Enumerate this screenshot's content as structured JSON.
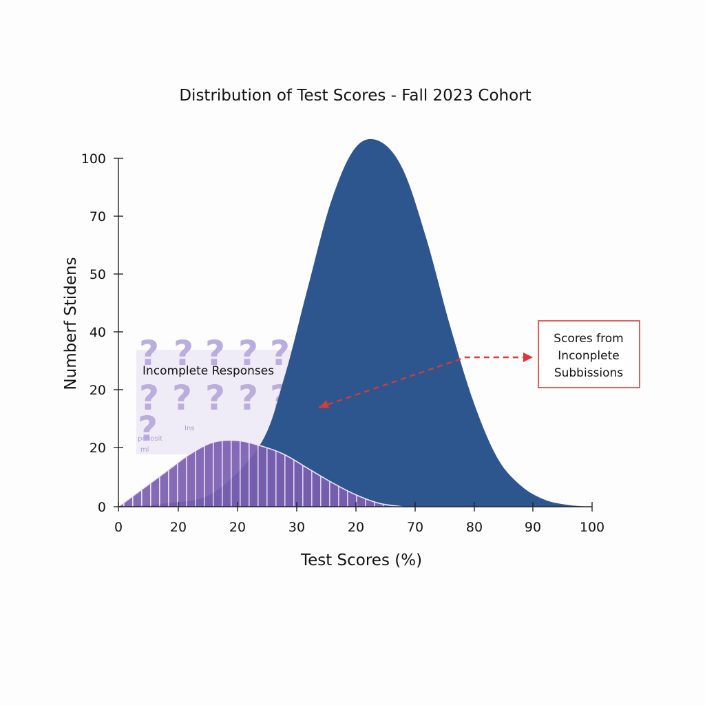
{
  "chart_data": {
    "type": "area",
    "title": "Distribution of Test Scores - Fall 2023 Cohort",
    "xlabel": "Test Scores (%)",
    "ylabel": "Numberf Stidens",
    "x_ticks": [
      "0",
      "20",
      "20",
      "30",
      "20",
      "70",
      "80",
      "90",
      "100"
    ],
    "y_ticks": [
      "0",
      "20",
      "20",
      "40",
      "50",
      "70",
      "100"
    ],
    "grid": false,
    "series": [
      {
        "fill": "#2d558e",
        "x": [
          0,
          10,
          20,
          30,
          35,
          40,
          45,
          50,
          55,
          60,
          65,
          70,
          75,
          80,
          85,
          90,
          95,
          100
        ],
        "y": [
          0,
          1,
          4,
          18,
          37,
          63,
          88,
          103,
          105,
          97,
          77,
          52,
          30,
          14,
          6,
          2,
          0.5,
          0
        ]
      },
      {
        "fill": "#7b5fb0",
        "pattern": "vertical-stripes",
        "x": [
          0,
          5,
          10,
          15,
          20,
          25,
          30,
          35,
          40,
          45,
          50,
          55,
          60
        ],
        "y": [
          0,
          5,
          10,
          15,
          18.5,
          19,
          17.5,
          15,
          11,
          7,
          3.5,
          1,
          0
        ]
      }
    ],
    "annotations": {
      "inset_label": "Incomplete Responses",
      "inset_ghost_text": [
        "Ins",
        "pcnosit",
        "ml"
      ],
      "callout_lines": [
        "Scores from",
        "Inconplete",
        "Subbissions"
      ],
      "callout_color": "#d63a3a"
    }
  }
}
